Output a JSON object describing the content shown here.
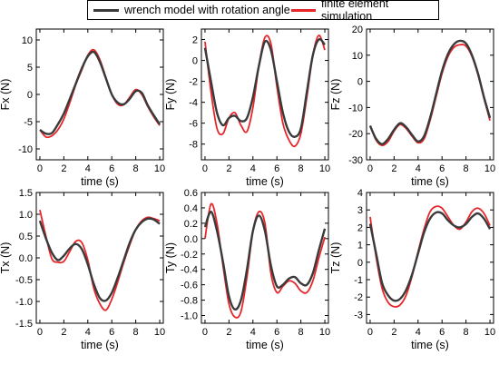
{
  "legend": {
    "items": [
      {
        "label": "wrench model with rotation angle",
        "color": "#3a3a3a"
      },
      {
        "label": "finite element simulation",
        "color": "#e8262a"
      }
    ]
  },
  "chart_data": [
    {
      "type": "line",
      "ylabel": "Fx (N)",
      "xlabel": "time (s)",
      "xlim": [
        -0.3,
        10.3
      ],
      "ylim": [
        -12,
        12
      ],
      "xticks": [
        0,
        2,
        4,
        6,
        8,
        10
      ],
      "yticks": [
        -10,
        -5,
        0,
        5,
        10
      ],
      "series": [
        {
          "name": "wrench model with rotation angle",
          "color": "#3a3a3a",
          "x": [
            0,
            0.5,
            1,
            1.5,
            2,
            2.5,
            3,
            3.5,
            4,
            4.5,
            5,
            5.5,
            6,
            6.5,
            7,
            7.5,
            8,
            8.5,
            9,
            9.5,
            10
          ],
          "y": [
            -6.5,
            -7.2,
            -7.1,
            -5.5,
            -3.5,
            -0.8,
            2.0,
            4.8,
            7.0,
            7.8,
            6.0,
            3.0,
            0.0,
            -1.5,
            -1.8,
            -0.8,
            0.6,
            0.3,
            -2.0,
            -3.8,
            -5.5
          ]
        },
        {
          "name": "finite element simulation",
          "color": "#e8262a",
          "x": [
            0,
            0.5,
            1,
            1.5,
            2,
            2.5,
            3,
            3.5,
            4,
            4.5,
            5,
            5.5,
            6,
            6.5,
            7,
            7.5,
            8,
            8.5,
            9,
            9.5,
            10
          ],
          "y": [
            -6.5,
            -7.8,
            -7.6,
            -6.5,
            -4.5,
            -1.5,
            1.8,
            4.5,
            7.2,
            8.2,
            6.4,
            3.2,
            0.0,
            -1.8,
            -1.9,
            -0.5,
            0.9,
            0.0,
            -2.2,
            -4.1,
            -5.7
          ]
        }
      ]
    },
    {
      "type": "line",
      "ylabel": "Fy (N)",
      "xlabel": "time (s)",
      "xlim": [
        -0.3,
        10.3
      ],
      "ylim": [
        -9.5,
        3
      ],
      "xticks": [
        0,
        2,
        4,
        6,
        8,
        10
      ],
      "yticks": [
        -8,
        -6,
        -4,
        -2,
        0,
        2
      ],
      "series": [
        {
          "name": "wrench model with rotation angle",
          "color": "#3a3a3a",
          "x": [
            0,
            0.5,
            1,
            1.5,
            2,
            2.5,
            3,
            3.5,
            4,
            4.5,
            5,
            5.5,
            6,
            6.5,
            7,
            7.5,
            8,
            8.5,
            9,
            9.5,
            10
          ],
          "y": [
            1.2,
            -2.0,
            -5.0,
            -6.2,
            -5.5,
            -5.3,
            -5.8,
            -5.5,
            -3.5,
            -0.5,
            1.8,
            1.0,
            -2.0,
            -5.0,
            -6.8,
            -7.3,
            -6.5,
            -3.0,
            0.5,
            2.0,
            1.5
          ]
        },
        {
          "name": "finite element simulation",
          "color": "#e8262a",
          "x": [
            0,
            0.5,
            1,
            1.5,
            2,
            2.5,
            3,
            3.5,
            4,
            4.5,
            5,
            5.5,
            6,
            6.5,
            7,
            7.5,
            8,
            8.5,
            9,
            9.5,
            10
          ],
          "y": [
            1.8,
            -3.0,
            -6.5,
            -7.0,
            -5.5,
            -5.0,
            -6.2,
            -6.8,
            -4.5,
            -0.5,
            2.2,
            1.6,
            -2.5,
            -6.0,
            -7.6,
            -8.2,
            -7.0,
            -3.5,
            0.5,
            2.4,
            1.0
          ]
        }
      ]
    },
    {
      "type": "line",
      "ylabel": "Fz (N)",
      "xlabel": "time (s)",
      "xlim": [
        -0.3,
        10.3
      ],
      "ylim": [
        -30,
        20
      ],
      "xticks": [
        0,
        2,
        4,
        6,
        8,
        10
      ],
      "yticks": [
        -30,
        -20,
        -10,
        0,
        10,
        20
      ],
      "series": [
        {
          "name": "wrench model with rotation angle",
          "color": "#3a3a3a",
          "x": [
            0,
            0.5,
            1,
            1.5,
            2,
            2.5,
            3,
            3.5,
            4,
            4.5,
            5,
            5.5,
            6,
            6.5,
            7,
            7.5,
            8,
            8.5,
            9,
            9.5,
            10
          ],
          "y": [
            -17,
            -22,
            -24,
            -22,
            -18.5,
            -16,
            -17.5,
            -20.5,
            -23,
            -21,
            -14,
            -5,
            4,
            10.5,
            14.2,
            15.5,
            14.5,
            10,
            3,
            -6,
            -14
          ]
        },
        {
          "name": "finite element simulation",
          "color": "#e8262a",
          "x": [
            0,
            0.5,
            1,
            1.5,
            2,
            2.5,
            3,
            3.5,
            4,
            4.5,
            5,
            5.5,
            6,
            6.5,
            7,
            7.5,
            8,
            8.5,
            9,
            9.5,
            10
          ],
          "y": [
            -17,
            -22.5,
            -24.5,
            -23,
            -19,
            -16.5,
            -18,
            -21,
            -23.5,
            -22,
            -15,
            -6,
            3,
            9.5,
            13,
            14,
            13.5,
            9.5,
            2.5,
            -6.5,
            -15
          ]
        }
      ]
    },
    {
      "type": "line",
      "ylabel": "Tx (N)",
      "xlabel": "time (s)",
      "xlim": [
        -0.3,
        10.3
      ],
      "ylim": [
        -1.5,
        1.5
      ],
      "xticks": [
        0,
        2,
        4,
        6,
        8,
        10
      ],
      "yticks": [
        -1.5,
        -1.0,
        -0.5,
        0.0,
        0.5,
        1.0,
        1.5
      ],
      "series": [
        {
          "name": "wrench model with rotation angle",
          "color": "#3a3a3a",
          "x": [
            0,
            0.5,
            1,
            1.5,
            2,
            2.5,
            3,
            3.5,
            4,
            4.5,
            5,
            5.5,
            6,
            6.5,
            7,
            7.5,
            8,
            8.5,
            9,
            9.5,
            10
          ],
          "y": [
            0.85,
            0.45,
            0.12,
            -0.05,
            0.05,
            0.22,
            0.32,
            0.2,
            -0.15,
            -0.6,
            -0.92,
            -0.98,
            -0.8,
            -0.45,
            -0.05,
            0.35,
            0.65,
            0.82,
            0.9,
            0.88,
            0.78
          ]
        },
        {
          "name": "finite element simulation",
          "color": "#e8262a",
          "x": [
            0,
            0.5,
            1,
            1.5,
            2,
            2.5,
            3,
            3.5,
            4,
            4.5,
            5,
            5.5,
            6,
            6.5,
            7,
            7.5,
            8,
            8.5,
            9,
            9.5,
            10
          ],
          "y": [
            1.1,
            0.5,
            -0.02,
            -0.1,
            -0.08,
            0.15,
            0.38,
            0.35,
            -0.05,
            -0.7,
            -1.05,
            -1.2,
            -0.95,
            -0.55,
            -0.1,
            0.3,
            0.65,
            0.85,
            0.93,
            0.9,
            0.85
          ]
        }
      ]
    },
    {
      "type": "line",
      "ylabel": "Ty (N)",
      "xlabel": "time (s)",
      "xlim": [
        -0.3,
        10.3
      ],
      "ylim": [
        -1.1,
        0.6
      ],
      "xticks": [
        0,
        2,
        4,
        6,
        8,
        10
      ],
      "yticks": [
        -1.0,
        -0.8,
        -0.6,
        -0.4,
        -0.2,
        0.0,
        0.2,
        0.4,
        0.6
      ],
      "series": [
        {
          "name": "wrench model with rotation angle",
          "color": "#3a3a3a",
          "x": [
            0,
            0.5,
            1,
            1.5,
            2,
            2.5,
            3,
            3.5,
            4,
            4.5,
            5,
            5.5,
            6,
            6.5,
            7,
            7.5,
            8,
            8.5,
            9,
            9.5,
            10
          ],
          "y": [
            0.15,
            0.35,
            0.1,
            -0.3,
            -0.75,
            -0.92,
            -0.8,
            -0.4,
            0.1,
            0.3,
            0.1,
            -0.35,
            -0.62,
            -0.6,
            -0.52,
            -0.5,
            -0.58,
            -0.6,
            -0.45,
            -0.15,
            0.13
          ]
        },
        {
          "name": "finite element simulation",
          "color": "#e8262a",
          "x": [
            0,
            0.5,
            1,
            1.5,
            2,
            2.5,
            3,
            3.5,
            4,
            4.5,
            5,
            5.5,
            6,
            6.5,
            7,
            7.5,
            8,
            8.5,
            9,
            9.5,
            10
          ],
          "y": [
            0.0,
            0.45,
            0.2,
            -0.35,
            -0.85,
            -1.02,
            -0.95,
            -0.5,
            0.1,
            0.35,
            0.2,
            -0.45,
            -0.7,
            -0.62,
            -0.55,
            -0.58,
            -0.68,
            -0.7,
            -0.55,
            -0.25,
            0.02
          ]
        }
      ]
    },
    {
      "type": "line",
      "ylabel": "Tz (N)",
      "xlabel": "time (s)",
      "xlim": [
        -0.3,
        10.3
      ],
      "ylim": [
        -3.5,
        4
      ],
      "xticks": [
        0,
        2,
        4,
        6,
        8,
        10
      ],
      "yticks": [
        -3,
        -2,
        -1,
        0,
        1,
        2,
        3,
        4
      ],
      "series": [
        {
          "name": "wrench model with rotation angle",
          "color": "#3a3a3a",
          "x": [
            0,
            0.5,
            1,
            1.5,
            2,
            2.5,
            3,
            3.5,
            4,
            4.5,
            5,
            5.5,
            6,
            6.5,
            7,
            7.5,
            8,
            8.5,
            9,
            9.5,
            10
          ],
          "y": [
            2.2,
            0.5,
            -1.2,
            -1.9,
            -2.2,
            -2.1,
            -1.6,
            -0.7,
            0.5,
            1.7,
            2.5,
            2.85,
            2.8,
            2.4,
            2.1,
            2.0,
            2.2,
            2.6,
            2.8,
            2.5,
            1.9
          ]
        },
        {
          "name": "finite element simulation",
          "color": "#e8262a",
          "x": [
            0,
            0.5,
            1,
            1.5,
            2,
            2.5,
            3,
            3.5,
            4,
            4.5,
            5,
            5.5,
            6,
            6.5,
            7,
            7.5,
            8,
            8.5,
            9,
            9.5,
            10
          ],
          "y": [
            2.6,
            0.3,
            -1.5,
            -2.3,
            -2.55,
            -2.45,
            -1.9,
            -0.8,
            0.6,
            1.9,
            2.9,
            3.2,
            3.1,
            2.6,
            2.1,
            1.9,
            2.3,
            2.9,
            3.1,
            2.8,
            2.1
          ]
        }
      ]
    }
  ]
}
